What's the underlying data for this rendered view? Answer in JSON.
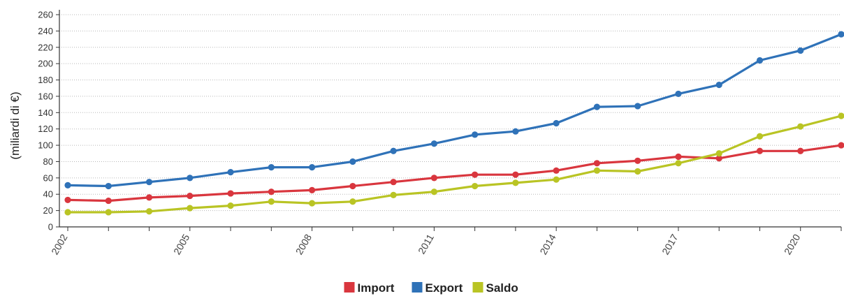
{
  "chart_data": {
    "type": "line",
    "title": "",
    "xlabel": "",
    "ylabel": "(miliardi di €)",
    "x": [
      2002,
      2003,
      2004,
      2005,
      2006,
      2007,
      2008,
      2009,
      2010,
      2011,
      2012,
      2013,
      2014,
      2015,
      2016,
      2017,
      2018,
      2019,
      2020,
      2021
    ],
    "x_tick_labels": [
      "2002",
      "2005",
      "2008",
      "2011",
      "2014",
      "2017",
      "2020"
    ],
    "x_tick_values": [
      2002,
      2005,
      2008,
      2011,
      2014,
      2017,
      2020
    ],
    "xlim": [
      2002,
      2021
    ],
    "ylim": [
      0,
      260
    ],
    "y_ticks": [
      0,
      20,
      40,
      60,
      80,
      100,
      120,
      140,
      160,
      180,
      200,
      220,
      240,
      260
    ],
    "grid": "horizontal-dotted",
    "legend_position": "bottom-center",
    "series": [
      {
        "name": "Import",
        "color": "#d9363e",
        "values": [
          33,
          32,
          36,
          38,
          41,
          43,
          45,
          50,
          55,
          60,
          64,
          64,
          69,
          78,
          81,
          86,
          84,
          93,
          93,
          100
        ]
      },
      {
        "name": "Export",
        "color": "#2f72b8",
        "values": [
          51,
          50,
          55,
          60,
          67,
          73,
          73,
          80,
          93,
          102,
          113,
          117,
          127,
          147,
          148,
          163,
          174,
          204,
          216,
          236
        ]
      },
      {
        "name": "Saldo",
        "color": "#b9c424",
        "values": [
          18,
          18,
          19,
          23,
          26,
          31,
          29,
          31,
          39,
          43,
          50,
          54,
          58,
          69,
          68,
          78,
          90,
          111,
          123,
          136
        ]
      }
    ]
  }
}
